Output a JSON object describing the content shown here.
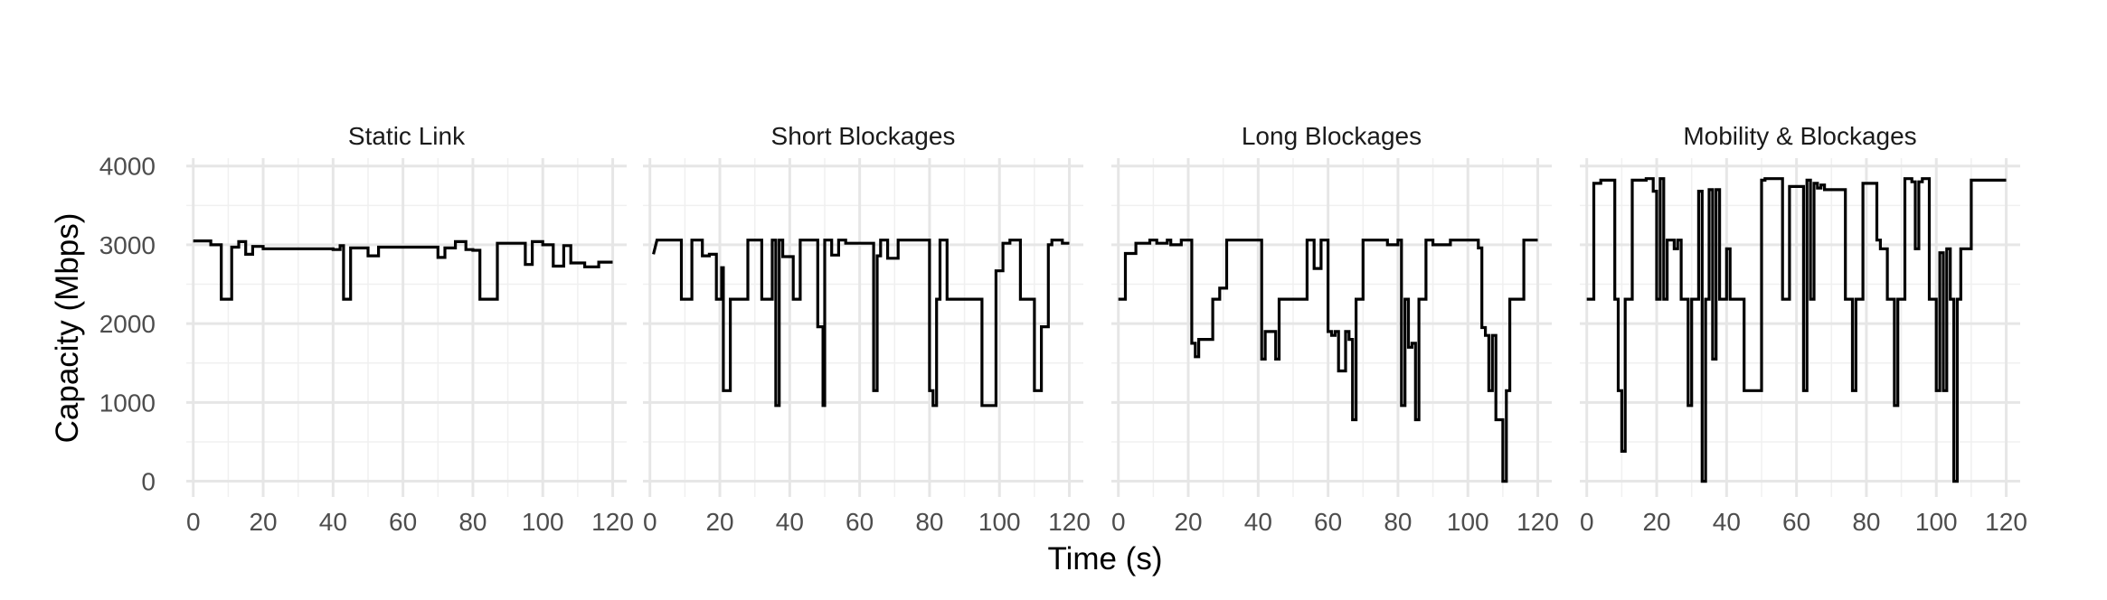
{
  "chart_data": {
    "type": "line",
    "xlabel": "Time (s)",
    "ylabel": "Capacity (Mbps)",
    "xlim": [
      -2,
      124
    ],
    "ylim": [
      -200,
      4100
    ],
    "xticks": [
      "0",
      "20",
      "40",
      "60",
      "80",
      "100",
      "120"
    ],
    "yticks": [
      "0",
      "1000",
      "2000",
      "3000",
      "4000"
    ],
    "grid": true,
    "line_color": "#000000",
    "panels": [
      {
        "title": "Static Link",
        "x": [
          0,
          5,
          5,
          8,
          8,
          10,
          10,
          11,
          11,
          13,
          13,
          15,
          15,
          17,
          17,
          20,
          20,
          40,
          40,
          42,
          42,
          43,
          43,
          45,
          45,
          50,
          50,
          53,
          53,
          70,
          70,
          72,
          72,
          75,
          75,
          78,
          78,
          80,
          80,
          82,
          82,
          84,
          84,
          87,
          87,
          95,
          95,
          97,
          97,
          100,
          100,
          103,
          103,
          104,
          104,
          106,
          106,
          108,
          108,
          112,
          112,
          116,
          116,
          118,
          118,
          120
        ],
        "y": [
          3050,
          3050,
          3000,
          3000,
          2310,
          2310,
          2310,
          2310,
          2970,
          2970,
          3040,
          3040,
          2880,
          2880,
          2980,
          2980,
          2950,
          2950,
          2940,
          2940,
          2990,
          2990,
          2310,
          2310,
          2960,
          2960,
          2860,
          2860,
          2970,
          2970,
          2840,
          2840,
          2960,
          2960,
          3040,
          3040,
          2940,
          2940,
          2930,
          2930,
          2310,
          2310,
          2310,
          2310,
          3020,
          3020,
          2750,
          2750,
          3040,
          3040,
          3000,
          3000,
          2730,
          2730,
          2730,
          2730,
          2990,
          2990,
          2770,
          2770,
          2720,
          2720,
          2780,
          2780,
          2780,
          2780
        ]
      },
      {
        "title": "Short Blockages",
        "x": [
          1,
          2,
          2,
          9,
          9,
          12,
          12,
          15,
          15,
          17,
          17,
          19,
          19,
          20.5,
          20.5,
          21,
          21,
          23,
          23,
          28,
          28,
          32,
          32,
          35,
          35,
          36,
          36,
          37,
          37,
          38,
          38,
          41,
          41,
          43,
          43,
          48,
          48,
          49.5,
          49.5,
          50,
          50,
          52,
          52,
          54,
          54,
          56,
          56,
          64,
          64,
          65,
          65,
          66,
          66,
          68,
          68,
          71,
          71,
          74,
          74,
          80,
          80,
          81,
          81,
          82,
          82,
          83,
          83,
          85,
          85,
          88,
          88,
          92,
          92,
          95,
          95,
          98,
          98,
          99,
          99,
          101,
          101,
          103,
          103,
          106,
          106,
          110,
          110,
          112,
          112,
          114,
          114,
          115,
          115,
          118,
          118,
          120
        ],
        "y": [
          2880,
          3060,
          3060,
          3060,
          2310,
          2310,
          3060,
          3060,
          2860,
          2860,
          2880,
          2880,
          2310,
          2310,
          2710,
          2710,
          1150,
          1150,
          2310,
          2310,
          3060,
          3060,
          2310,
          2310,
          3060,
          3060,
          960,
          960,
          3060,
          3060,
          2850,
          2850,
          2310,
          2310,
          3060,
          3060,
          1960,
          1960,
          960,
          960,
          3060,
          3060,
          2870,
          2870,
          3060,
          3060,
          3020,
          3020,
          1150,
          1150,
          2860,
          2860,
          3060,
          3060,
          2830,
          2830,
          3060,
          3060,
          3060,
          3060,
          1150,
          1150,
          960,
          960,
          2310,
          2310,
          3060,
          3060,
          2310,
          2310,
          2310,
          2310,
          2310,
          2310,
          960,
          960,
          960,
          960,
          2670,
          2670,
          3020,
          3020,
          3060,
          3060,
          2310,
          2310,
          1150,
          1150,
          1960,
          1960,
          3000,
          3000,
          3060,
          3060,
          3020,
          3020
        ]
      },
      {
        "title": "Long Blockages",
        "x": [
          0,
          2,
          2,
          5,
          5,
          9,
          9,
          11,
          11,
          14,
          14,
          15,
          15,
          18,
          18,
          21,
          21,
          22,
          22,
          23,
          23,
          27,
          27,
          29,
          29,
          31,
          31,
          40,
          40,
          41,
          41,
          42,
          42,
          45,
          45,
          46,
          46,
          52,
          52,
          54,
          54,
          56,
          56,
          58,
          58,
          60,
          60,
          61,
          61,
          62,
          62,
          63,
          63,
          65,
          65,
          66,
          66,
          67,
          67,
          68,
          68,
          70,
          70,
          77,
          77,
          80,
          80,
          81,
          81,
          82,
          82,
          83,
          83,
          84,
          84,
          85,
          85,
          86,
          86,
          88,
          88,
          90,
          90,
          95,
          95,
          103,
          103,
          104,
          104,
          105,
          105,
          106,
          106,
          107,
          107,
          108,
          108,
          110,
          110,
          111,
          111,
          112,
          112,
          113,
          113,
          116,
          116,
          118,
          118,
          120
        ],
        "y": [
          2310,
          2310,
          2890,
          2890,
          3020,
          3020,
          3060,
          3060,
          3020,
          3020,
          3060,
          3060,
          3000,
          3000,
          3060,
          3060,
          1750,
          1750,
          1580,
          1580,
          1800,
          1800,
          2310,
          2310,
          2450,
          2450,
          3060,
          3060,
          3060,
          3060,
          1550,
          1550,
          1900,
          1900,
          1550,
          1550,
          2310,
          2310,
          2310,
          2310,
          3060,
          3060,
          2700,
          2700,
          3060,
          3060,
          1900,
          1900,
          1850,
          1850,
          1900,
          1900,
          1400,
          1400,
          1900,
          1900,
          1800,
          1800,
          780,
          780,
          2310,
          2310,
          3060,
          3060,
          3000,
          3000,
          3060,
          3060,
          960,
          960,
          2310,
          2310,
          1700,
          1700,
          1750,
          1750,
          780,
          780,
          2310,
          2310,
          3060,
          3060,
          3000,
          3000,
          3060,
          3060,
          2960,
          2960,
          1950,
          1950,
          1850,
          1850,
          1150,
          1150,
          1850,
          1850,
          780,
          780,
          0,
          0,
          1150,
          1150,
          2310,
          2310,
          2310,
          2310,
          3060,
          3060,
          3060,
          3060
        ]
      },
      {
        "title": "Mobility & Blockages",
        "x": [
          0,
          2,
          2,
          4,
          4,
          8,
          8,
          9,
          9,
          10,
          10,
          11,
          11,
          13,
          13,
          17,
          17,
          19,
          19,
          20,
          20,
          21,
          21,
          22,
          22,
          23,
          23,
          25,
          25,
          26,
          26,
          27,
          27,
          29,
          29,
          30,
          30,
          31,
          31,
          32,
          32,
          33,
          33,
          34,
          34,
          35,
          35,
          36,
          36,
          37,
          37,
          38,
          38,
          40,
          40,
          41,
          41,
          42,
          42,
          45,
          45,
          50,
          50,
          51,
          51,
          56,
          56,
          58,
          58,
          62,
          62,
          63,
          63,
          64,
          64,
          65,
          65,
          66,
          66,
          67,
          67,
          68,
          68,
          74,
          74,
          75,
          75,
          76,
          76,
          77,
          77,
          79,
          79,
          83,
          83,
          84,
          84,
          86,
          86,
          88,
          88,
          89,
          89,
          91,
          91,
          93,
          93,
          94,
          94,
          95,
          95,
          96,
          96,
          98,
          98,
          100,
          100,
          101,
          101,
          102,
          102,
          103,
          103,
          104,
          104,
          105,
          105,
          106,
          106,
          107,
          107,
          110,
          110,
          112,
          112,
          120
        ],
        "y": [
          2310,
          2310,
          3780,
          3780,
          3820,
          3820,
          2310,
          2310,
          1150,
          1150,
          380,
          380,
          2310,
          2310,
          3820,
          3820,
          3840,
          3840,
          3680,
          3680,
          2310,
          2310,
          3840,
          3840,
          2310,
          2310,
          3060,
          3060,
          2950,
          2950,
          3060,
          3060,
          2310,
          2310,
          960,
          960,
          2310,
          2310,
          2310,
          2310,
          3680,
          3680,
          0,
          0,
          2310,
          2310,
          3700,
          3700,
          1550,
          1550,
          3700,
          3700,
          2310,
          2310,
          2950,
          2950,
          2310,
          2310,
          2310,
          2310,
          1150,
          1150,
          3820,
          3820,
          3840,
          3840,
          2310,
          2310,
          3740,
          3740,
          1150,
          1150,
          3820,
          3820,
          2310,
          2310,
          3780,
          3780,
          3720,
          3720,
          3760,
          3760,
          3700,
          3700,
          2310,
          2310,
          2310,
          2310,
          1150,
          1150,
          2310,
          2310,
          3780,
          3780,
          3060,
          3060,
          2950,
          2950,
          2310,
          2310,
          960,
          960,
          2310,
          2310,
          3840,
          3840,
          3800,
          3800,
          2950,
          2950,
          3800,
          3800,
          3840,
          3840,
          2310,
          2310,
          1150,
          1150,
          2900,
          2900,
          1150,
          1150,
          2950,
          2950,
          2310,
          2310,
          0,
          0,
          2310,
          2310,
          2950,
          2950,
          3820,
          3820,
          3820,
          3820
        ]
      }
    ]
  }
}
